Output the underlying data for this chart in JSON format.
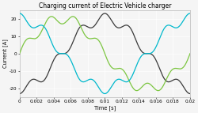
{
  "title": "Charging current of Electric Vehicle charger",
  "xlabel": "Time [s]",
  "ylabel": "Current [A]",
  "xlim": [
    0,
    0.02
  ],
  "ylim": [
    -25,
    25
  ],
  "yticks": [
    -20,
    -10,
    0,
    10,
    20
  ],
  "xticks": [
    0,
    0.002,
    0.004,
    0.006,
    0.008,
    0.01,
    0.012,
    0.014,
    0.016,
    0.018,
    0.02
  ],
  "xtick_labels": [
    "0",
    "0.002",
    "0.004",
    "0.006",
    "0.008",
    "0.01",
    "0.012",
    "0.014",
    "0.016",
    "0.018",
    "0.02"
  ],
  "color_dark": "#3a3a3a",
  "color_cyan": "#00b8cc",
  "color_green": "#7dc642",
  "bg_color": "#f5f5f5",
  "linewidth": 0.9,
  "freq_main": 50,
  "freq_harmonic": 350,
  "amplitude_main": 20,
  "amplitude_harmonic": 3.0,
  "phase_dark": -1.5707963,
  "phase_cyan": 1.5707963,
  "phase_green": 0.0,
  "harm_phase_dark": -1.5707963,
  "harm_phase_cyan": 1.5707963,
  "harm_phase_green": 0.0,
  "title_fontsize": 5.5,
  "label_fontsize": 4.8,
  "tick_fontsize": 4.2,
  "figwidth": 2.5,
  "figheight": 1.43,
  "dpi": 100
}
